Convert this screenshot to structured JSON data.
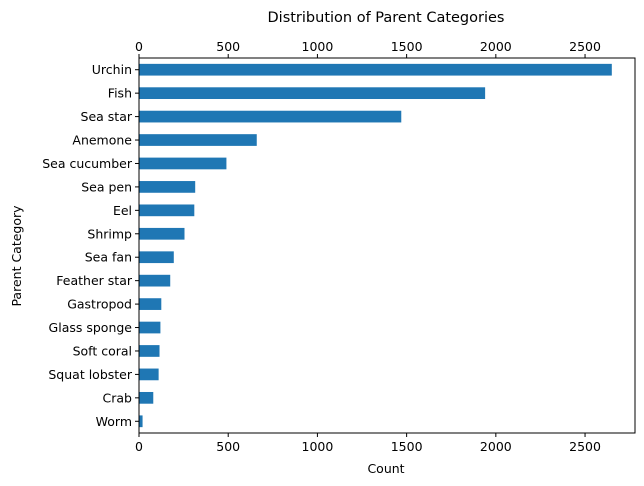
{
  "chart_data": {
    "type": "bar",
    "orientation": "horizontal",
    "title": "Distribution of Parent Categories",
    "xlabel": "Count",
    "ylabel": "Parent Category",
    "xlim": [
      0,
      2780
    ],
    "xticks": [
      0,
      500,
      1000,
      1500,
      2000,
      2500
    ],
    "xtick_labels": [
      "0",
      "500",
      "1000",
      "1500",
      "2000",
      "2500"
    ],
    "x_axis_ticks_on": [
      "top",
      "bottom"
    ],
    "grid": false,
    "bar_color": "#1f77b4",
    "categories": [
      "Urchin",
      "Fish",
      "Sea star",
      "Anemone",
      "Sea cucumber",
      "Sea pen",
      "Eel",
      "Shrimp",
      "Sea fan",
      "Feather star",
      "Gastropod",
      "Glass sponge",
      "Soft coral",
      "Squat lobster",
      "Crab",
      "Worm"
    ],
    "values": [
      2650,
      1940,
      1470,
      660,
      490,
      315,
      310,
      255,
      195,
      175,
      125,
      120,
      115,
      110,
      80,
      20
    ]
  }
}
